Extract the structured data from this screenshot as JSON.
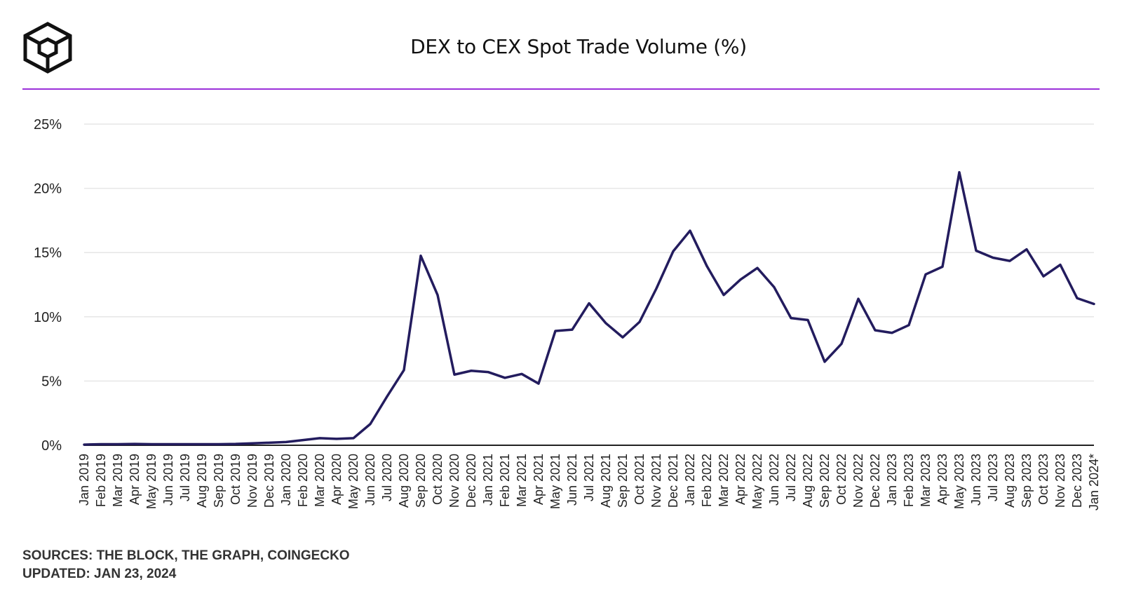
{
  "header": {
    "title": "DEX to CEX Spot Trade Volume (%)",
    "logo_icon": "the-block-cube-logo-icon"
  },
  "footer": {
    "sources": "SOURCES: THE BLOCK, THE GRAPH, COINGECKO",
    "updated": "UPDATED: JAN 23, 2024"
  },
  "colors": {
    "line": "#231c5e",
    "accent_rule": "#9b30d9",
    "grid": "#e6e6e6",
    "axis": "#222222"
  },
  "chart_data": {
    "type": "line",
    "title": "DEX to CEX Spot Trade Volume (%)",
    "xlabel": "",
    "ylabel": "",
    "ylim": [
      0,
      25
    ],
    "yticks": [
      0,
      5,
      10,
      15,
      20,
      25
    ],
    "ytick_labels": [
      "0%",
      "5%",
      "10%",
      "15%",
      "20%",
      "25%"
    ],
    "grid": true,
    "categories": [
      "Jan 2019",
      "Feb 2019",
      "Mar 2019",
      "Apr 2019",
      "May 2019",
      "Jun 2019",
      "Jul 2019",
      "Aug 2019",
      "Sep 2019",
      "Oct 2019",
      "Nov 2019",
      "Dec 2019",
      "Jan 2020",
      "Feb 2020",
      "Mar 2020",
      "Apr 2020",
      "May 2020",
      "Jun 2020",
      "Jul 2020",
      "Aug 2020",
      "Sep 2020",
      "Oct 2020",
      "Nov 2020",
      "Dec 2020",
      "Jan 2021",
      "Feb 2021",
      "Mar 2021",
      "Apr 2021",
      "May 2021",
      "Jun 2021",
      "Jul 2021",
      "Aug 2021",
      "Sep 2021",
      "Oct 2021",
      "Nov 2021",
      "Dec 2021",
      "Jan 2022",
      "Feb 2022",
      "Mar 2022",
      "Apr 2022",
      "May 2022",
      "Jun 2022",
      "Jul 2022",
      "Aug 2022",
      "Sep 2022",
      "Oct 2022",
      "Nov 2022",
      "Dec 2022",
      "Jan 2023",
      "Feb 2023",
      "Mar 2023",
      "Apr 2023",
      "May 2023",
      "Jun 2023",
      "Jul 2023",
      "Aug 2023",
      "Sep 2023",
      "Oct 2023",
      "Nov 2023",
      "Dec 2023",
      "Jan 2024*"
    ],
    "series": [
      {
        "name": "DEX to CEX Spot Trade Volume (%)",
        "values": [
          0.05,
          0.08,
          0.08,
          0.1,
          0.08,
          0.08,
          0.08,
          0.08,
          0.08,
          0.1,
          0.15,
          0.2,
          0.25,
          0.4,
          0.55,
          0.5,
          0.55,
          1.65,
          3.8,
          5.85,
          14.75,
          11.7,
          5.5,
          5.8,
          5.7,
          5.25,
          5.55,
          4.8,
          8.9,
          9.0,
          11.05,
          9.5,
          8.4,
          9.6,
          12.2,
          15.1,
          16.7,
          13.95,
          11.7,
          12.9,
          13.8,
          12.3,
          9.9,
          9.75,
          6.5,
          7.9,
          11.4,
          8.95,
          8.75,
          9.35,
          13.3,
          13.9,
          21.25,
          15.15,
          14.6,
          14.35,
          15.25,
          13.15,
          14.05,
          11.45,
          11.0
        ]
      }
    ]
  }
}
